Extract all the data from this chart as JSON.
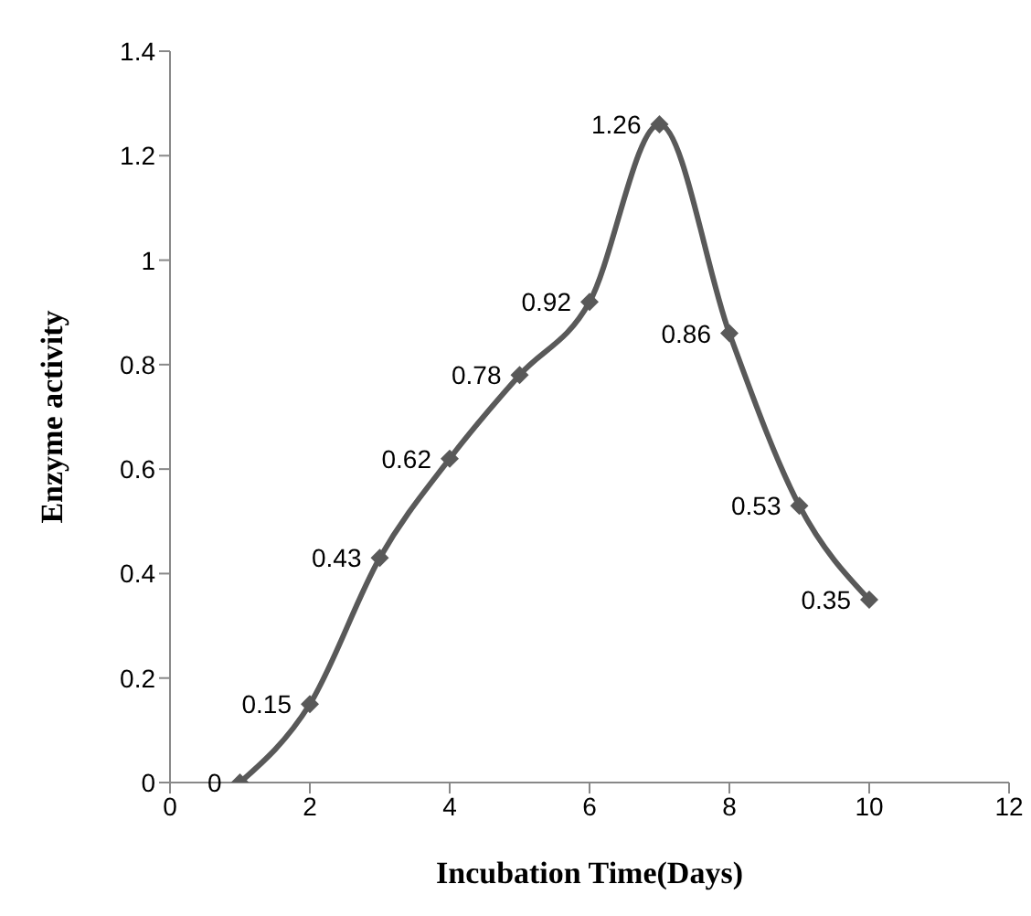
{
  "chart_data": {
    "type": "line",
    "xlabel": "Incubation  Time(Days)",
    "ylabel": "Enzyme  activity",
    "x": [
      1,
      2,
      3,
      4,
      5,
      6,
      7,
      8,
      9,
      10
    ],
    "series": [
      {
        "color": "#595959",
        "values": [
          0,
          0.15,
          0.43,
          0.62,
          0.78,
          0.92,
          1.26,
          0.86,
          0.53,
          0.35
        ]
      }
    ],
    "xlim": [
      0,
      12
    ],
    "xticks": [
      0,
      2,
      4,
      6,
      8,
      10,
      12
    ],
    "ylim": [
      0,
      1.4
    ],
    "yticks": [
      0,
      0.2,
      0.4,
      0.6,
      0.8,
      1,
      1.2,
      1.4
    ],
    "data_labels": true,
    "marker": "diamond",
    "line_style": "solid",
    "grid": false,
    "legend": false
  }
}
